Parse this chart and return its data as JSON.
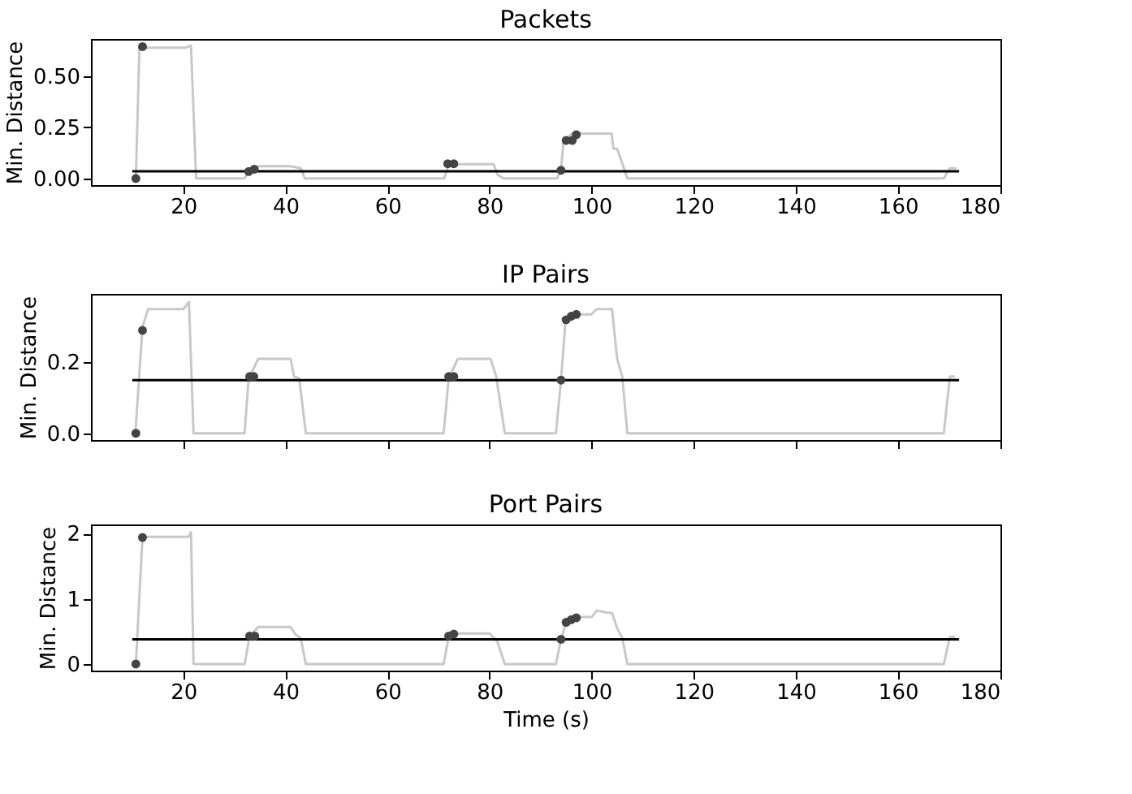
{
  "chart_data": [
    {
      "type": "line",
      "title": "Packets",
      "ylabel": "Min. Distance",
      "xlim": [
        1.9,
        180.1
      ],
      "xticks": [
        20,
        40,
        60,
        80,
        100,
        120,
        140,
        160,
        180
      ],
      "ylim": [
        -0.0325,
        0.6825
      ],
      "yticks": [
        {
          "value": 0,
          "label": "0.00"
        },
        {
          "value": 0.25,
          "label": "0.25"
        },
        {
          "value": 0.5,
          "label": "0.50"
        }
      ],
      "grid": false,
      "series": [
        {
          "type": "line",
          "color": "#c8c8c8",
          "x": [
            10.7,
            11.4,
            20.5,
            21.5,
            22.5,
            32,
            32.8,
            34.8,
            41,
            43,
            43.8,
            71.1,
            72,
            80.8,
            81.5,
            82.7,
            93.2,
            94,
            94.5,
            96.2,
            103.9,
            104.3,
            105,
            107,
            169,
            170.2,
            171.5
          ],
          "values": [
            0,
            0.64,
            0.64,
            0.65,
            0,
            0,
            0.035,
            0.06,
            0.06,
            0.05,
            0,
            0,
            0.07,
            0.07,
            0.02,
            0,
            0,
            0.04,
            0.185,
            0.22,
            0.22,
            0.145,
            0.145,
            0,
            0,
            0.05,
            0.05
          ]
        },
        {
          "type": "line",
          "color": "#000000",
          "x": [
            10,
            172
          ],
          "values": [
            0.035,
            0.035
          ]
        },
        {
          "type": "scatter",
          "color": "#444444",
          "x": [
            10.7,
            12,
            32.8,
            33.9,
            71.8,
            73,
            94,
            95,
            96.2,
            97
          ],
          "values": [
            0,
            0.645,
            0.034,
            0.045,
            0.072,
            0.072,
            0.04,
            0.186,
            0.186,
            0.214
          ]
        }
      ]
    },
    {
      "type": "line",
      "title": "IP Pairs",
      "ylabel": "Min. Distance",
      "xlim": [
        1.9,
        180.1
      ],
      "xticks": [
        20,
        40,
        60,
        80,
        100,
        120,
        140,
        160,
        180
      ],
      "ylim": [
        -0.019,
        0.393
      ],
      "yticks": [
        {
          "value": 0,
          "label": "0.0"
        },
        {
          "value": 0.2,
          "label": "0.2"
        }
      ],
      "grid": false,
      "tick_labels": "y",
      "series": [
        {
          "type": "line",
          "color": "#c8c8c8",
          "x": [
            10.6,
            12,
            13.1,
            20,
            21.1,
            22,
            32,
            32.8,
            34.7,
            41,
            41.7,
            42.7,
            44,
            71,
            72,
            73.8,
            80.2,
            81.3,
            83,
            93,
            94,
            94.9,
            95.8,
            97.2,
            99.9,
            101,
            104,
            105,
            106,
            107,
            169,
            170.2,
            171.2
          ],
          "values": [
            0,
            0.3,
            0.35,
            0.35,
            0.37,
            0,
            0,
            0.155,
            0.21,
            0.21,
            0.16,
            0.155,
            0,
            0,
            0.155,
            0.21,
            0.21,
            0.16,
            0,
            0,
            0.15,
            0.32,
            0.33,
            0.335,
            0.335,
            0.35,
            0.35,
            0.21,
            0.16,
            0,
            0,
            0.16,
            0.16
          ]
        },
        {
          "type": "line",
          "color": "#000000",
          "x": [
            10,
            172
          ],
          "values": [
            0.15,
            0.15
          ]
        },
        {
          "type": "scatter",
          "color": "#444444",
          "x": [
            10.7,
            12,
            33,
            33.8,
            72,
            73,
            94,
            95,
            96,
            97
          ],
          "values": [
            0,
            0.29,
            0.16,
            0.16,
            0.16,
            0.16,
            0.15,
            0.32,
            0.33,
            0.335
          ]
        }
      ]
    },
    {
      "type": "line",
      "title": "Port Pairs",
      "xlabel": "Time (s)",
      "ylabel": "Min. Distance",
      "xlim": [
        1.9,
        180.1
      ],
      "xticks": [
        20,
        40,
        60,
        80,
        100,
        120,
        140,
        160,
        180
      ],
      "ylim": [
        -0.1,
        2.14
      ],
      "yticks": [
        0,
        1,
        2
      ],
      "grid": false,
      "series": [
        {
          "type": "line",
          "color": "#c8c8c8",
          "x": [
            10.7,
            12,
            21,
            21.5,
            22,
            32,
            33,
            34.7,
            41,
            42,
            43,
            44,
            71,
            72,
            73.5,
            80,
            81.5,
            83,
            93,
            94,
            95,
            96,
            98,
            100,
            101,
            103,
            104,
            105,
            106,
            107,
            169,
            170.2,
            171.2
          ],
          "values": [
            0,
            1.95,
            1.95,
            2.02,
            0,
            0,
            0.43,
            0.57,
            0.57,
            0.45,
            0.4,
            0,
            0,
            0.43,
            0.47,
            0.47,
            0.35,
            0,
            0,
            0.38,
            0.64,
            0.7,
            0.72,
            0.72,
            0.82,
            0.79,
            0.78,
            0.55,
            0.4,
            0,
            0,
            0.42,
            0.42
          ]
        },
        {
          "type": "line",
          "color": "#000000",
          "x": [
            10,
            172
          ],
          "values": [
            0.38,
            0.38
          ]
        },
        {
          "type": "scatter",
          "color": "#444444",
          "x": [
            10.7,
            12,
            33,
            34,
            72,
            73,
            94,
            95,
            96,
            97
          ],
          "values": [
            0,
            1.94,
            0.43,
            0.43,
            0.43,
            0.46,
            0.38,
            0.64,
            0.68,
            0.71
          ]
        }
      ]
    }
  ]
}
